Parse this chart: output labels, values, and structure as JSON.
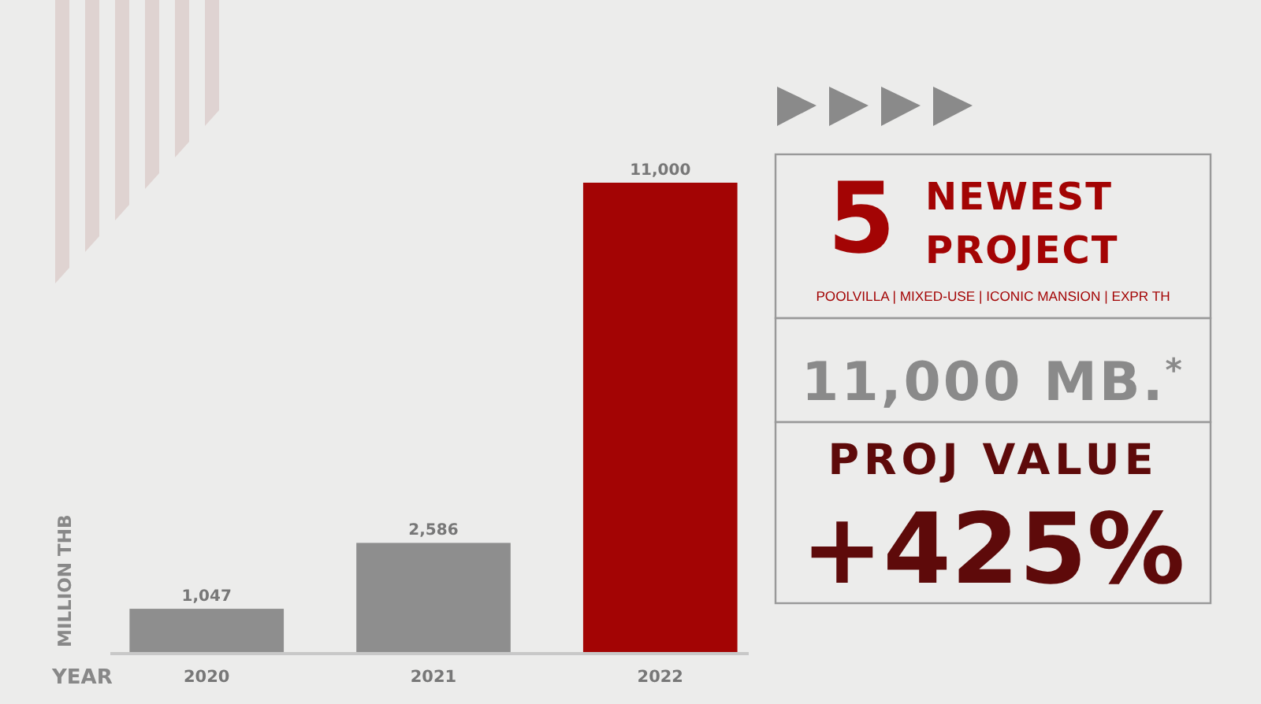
{
  "chart_data": {
    "type": "bar",
    "xlabel": "YEAR",
    "ylabel": "MILLION THB",
    "categories": [
      "2020",
      "2021",
      "2022"
    ],
    "values": [
      1047,
      2586,
      11000
    ],
    "colors": [
      "#8e8e8e",
      "#8e8e8e",
      "#a30404"
    ],
    "data_labels": true,
    "value_labels": [
      "1,047",
      "2,586",
      "11,000"
    ],
    "annotations": [
      "5",
      "NEWEST",
      "PROJECT",
      "POOLVILLA | MIXED-USE | ICONIC MANSION | EXPR TH",
      "11,000 MB.$^{*}$",
      "PROJ VALUE",
      "+425%"
    ]
  }
}
